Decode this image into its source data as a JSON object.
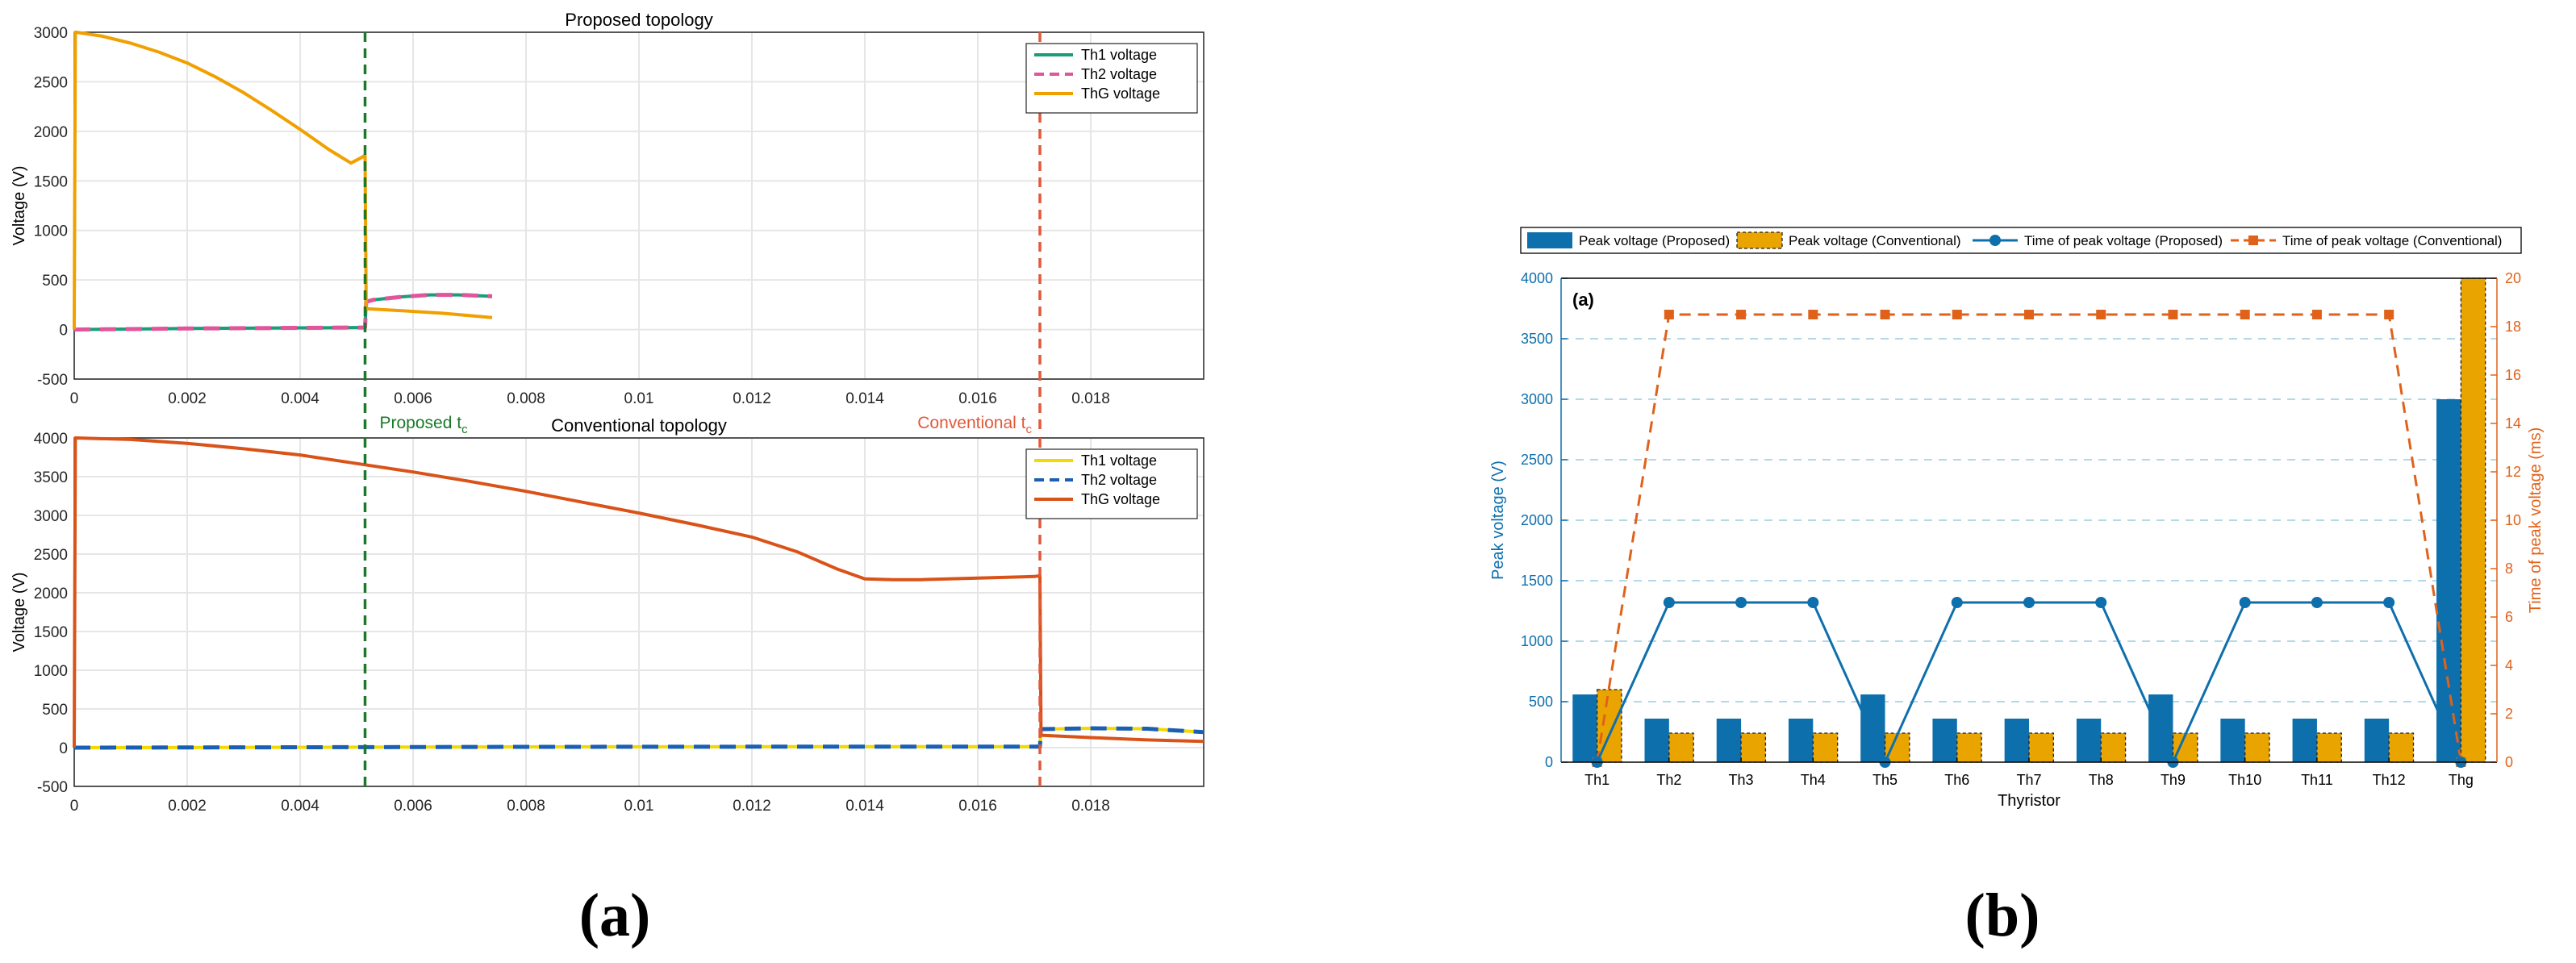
{
  "panel_labels": {
    "a": "(a)",
    "b": "(b)"
  },
  "chart_data": [
    {
      "id": "a_top",
      "type": "line",
      "title": "Proposed topology",
      "xlabel": "",
      "ylabel": "Voltage (V)",
      "xlim": [
        0,
        0.02
      ],
      "ylim": [
        -500,
        3000
      ],
      "xticks": [
        0,
        0.002,
        0.004,
        0.006,
        0.008,
        0.01,
        0.012,
        0.014,
        0.016,
        0.018
      ],
      "xtick_labels": [
        "0",
        "0.002",
        "0.004",
        "0.006",
        "0.008",
        "0.01",
        "0.012",
        "0.014",
        "0.016",
        "0.018"
      ],
      "yticks": [
        -500,
        0,
        500,
        1000,
        1500,
        2000,
        2500,
        3000
      ],
      "ytick_labels": [
        "-500",
        "0",
        "500",
        "1000",
        "1500",
        "2000",
        "2500",
        "3000"
      ],
      "grid": true,
      "legend": "top-right",
      "series": [
        {
          "name": "Th1 voltage",
          "color": "#1a9e77",
          "dash": "solid",
          "x": [
            0,
            0.001,
            0.002,
            0.003,
            0.004,
            0.005,
            0.00515,
            0.00517,
            0.0053,
            0.0058,
            0.0063,
            0.0068,
            0.0074
          ],
          "y": [
            0,
            5,
            10,
            14,
            17,
            20,
            20,
            280,
            300,
            330,
            350,
            350,
            335
          ]
        },
        {
          "name": "Th2 voltage",
          "color": "#e0559b",
          "dash": "dashed",
          "x": [
            0,
            0.001,
            0.002,
            0.003,
            0.004,
            0.005,
            0.00515,
            0.00517,
            0.0053,
            0.0058,
            0.0063,
            0.0068,
            0.0074
          ],
          "y": [
            0,
            5,
            10,
            14,
            17,
            20,
            20,
            280,
            300,
            330,
            350,
            350,
            335
          ]
        },
        {
          "name": "ThG voltage",
          "color": "#f0a000",
          "dash": "solid",
          "x": [
            0,
            2e-05,
            4e-05,
            0.0005,
            0.001,
            0.0015,
            0.002,
            0.0025,
            0.003,
            0.0035,
            0.004,
            0.0045,
            0.0049,
            0.0051,
            0.00515,
            0.00517,
            0.0058,
            0.0065,
            0.0074
          ],
          "y": [
            0,
            3000,
            3000,
            2960,
            2890,
            2800,
            2690,
            2550,
            2390,
            2210,
            2020,
            1820,
            1680,
            1740,
            1760,
            210,
            190,
            165,
            120
          ]
        }
      ],
      "vlines": [
        {
          "x": 0.00515,
          "color": "#1a7a2a"
        },
        {
          "x": 0.0171,
          "color": "#e05a3a"
        }
      ]
    },
    {
      "id": "a_bottom",
      "type": "line",
      "title": "Conventional topology",
      "xlabel": "",
      "ylabel": "Voltage (V)",
      "xlim": [
        0,
        0.02
      ],
      "ylim": [
        -500,
        4000
      ],
      "xticks": [
        0,
        0.002,
        0.004,
        0.006,
        0.008,
        0.01,
        0.012,
        0.014,
        0.016,
        0.018
      ],
      "xtick_labels": [
        "0",
        "0.002",
        "0.004",
        "0.006",
        "0.008",
        "0.01",
        "0.012",
        "0.014",
        "0.016",
        "0.018"
      ],
      "yticks": [
        -500,
        0,
        500,
        1000,
        1500,
        2000,
        2500,
        3000,
        3500,
        4000
      ],
      "ytick_labels": [
        "-500",
        "0",
        "500",
        "1000",
        "1500",
        "2000",
        "2500",
        "3000",
        "3500",
        "4000"
      ],
      "grid": true,
      "legend": "top-right",
      "annotations": [
        {
          "main": "Proposed t",
          "sub": "c",
          "color": "#1a7a2a",
          "x": 0.00515
        },
        {
          "main": "Conventional t",
          "sub": "c",
          "color": "#e05a3a",
          "x": 0.0171
        }
      ],
      "series": [
        {
          "name": "Th1 voltage",
          "color": "#f5d800",
          "dash": "solid",
          "x": [
            0,
            0.004,
            0.008,
            0.012,
            0.0171,
            0.01712,
            0.018,
            0.019,
            0.02
          ],
          "y": [
            0,
            5,
            10,
            12,
            14,
            240,
            250,
            245,
            200
          ]
        },
        {
          "name": "Th2 voltage",
          "color": "#1a5fb4",
          "dash": "dashed",
          "x": [
            0,
            0.004,
            0.008,
            0.012,
            0.0171,
            0.01712,
            0.018,
            0.019,
            0.02
          ],
          "y": [
            0,
            5,
            10,
            12,
            14,
            240,
            250,
            245,
            200
          ]
        },
        {
          "name": "ThG voltage",
          "color": "#d95319",
          "dash": "solid",
          "x": [
            0,
            2e-05,
            4e-05,
            0.001,
            0.002,
            0.003,
            0.004,
            0.005,
            0.006,
            0.007,
            0.008,
            0.009,
            0.01,
            0.011,
            0.012,
            0.0128,
            0.0135,
            0.014,
            0.0145,
            0.015,
            0.016,
            0.017,
            0.0171,
            0.01712,
            0.018,
            0.019,
            0.02
          ],
          "y": [
            0,
            4000,
            4000,
            3980,
            3930,
            3860,
            3780,
            3670,
            3560,
            3440,
            3310,
            3170,
            3030,
            2880,
            2720,
            2530,
            2310,
            2180,
            2170,
            2170,
            2190,
            2210,
            2220,
            160,
            130,
            100,
            80
          ]
        }
      ],
      "vlines": [
        {
          "x": 0.00515,
          "color": "#1a7a2a"
        },
        {
          "x": 0.0171,
          "color": "#e05a3a"
        }
      ]
    },
    {
      "id": "b",
      "type": "bar",
      "panel_tag": "(a)",
      "xlabel": "Thyristor",
      "ylabel": "Peak voltage (V)",
      "y2label": "Time of peak voltage (ms)",
      "categories": [
        "Th1",
        "Th2",
        "Th3",
        "Th4",
        "Th5",
        "Th6",
        "Th7",
        "Th8",
        "Th9",
        "Th10",
        "Th11",
        "Th12",
        "Thg"
      ],
      "ylim": [
        0,
        4000
      ],
      "yticks": [
        0,
        500,
        1000,
        1500,
        2000,
        2500,
        3000,
        3500,
        4000
      ],
      "ytick_labels": [
        "0",
        "500",
        "1000",
        "1500",
        "2000",
        "2500",
        "3000",
        "3500",
        "4000"
      ],
      "y2lim": [
        0,
        20
      ],
      "y2ticks": [
        0,
        2,
        4,
        6,
        8,
        10,
        12,
        14,
        16,
        18,
        20
      ],
      "y2tick_labels": [
        "0",
        "2",
        "4",
        "6",
        "8",
        "10",
        "12",
        "14",
        "16",
        "18",
        "20"
      ],
      "grid": true,
      "legend": "top",
      "colors": {
        "proposed": "#0e6fad",
        "conventional": "#e9a400",
        "time_conventional": "#e0621a",
        "axis_left": "#0e6fad",
        "axis_right": "#e0621a"
      },
      "series": [
        {
          "name": "Peak voltage (Proposed)",
          "kind": "bar",
          "axis": "left",
          "values": [
            560,
            360,
            360,
            360,
            560,
            360,
            360,
            360,
            560,
            360,
            360,
            360,
            3000
          ]
        },
        {
          "name": "Peak voltage (Conventional)",
          "kind": "bar",
          "axis": "left",
          "values": [
            600,
            240,
            240,
            240,
            240,
            240,
            240,
            240,
            240,
            240,
            240,
            240,
            4000
          ]
        },
        {
          "name": "Time of peak voltage (Proposed)",
          "kind": "line",
          "axis": "right",
          "values": [
            0,
            6.6,
            6.6,
            6.6,
            0,
            6.6,
            6.6,
            6.6,
            0,
            6.6,
            6.6,
            6.6,
            0
          ]
        },
        {
          "name": "Time of peak voltage (Conventional)",
          "kind": "line-dashed",
          "axis": "right",
          "values": [
            0,
            18.5,
            18.5,
            18.5,
            18.5,
            18.5,
            18.5,
            18.5,
            18.5,
            18.5,
            18.5,
            18.5,
            0
          ]
        }
      ]
    }
  ]
}
